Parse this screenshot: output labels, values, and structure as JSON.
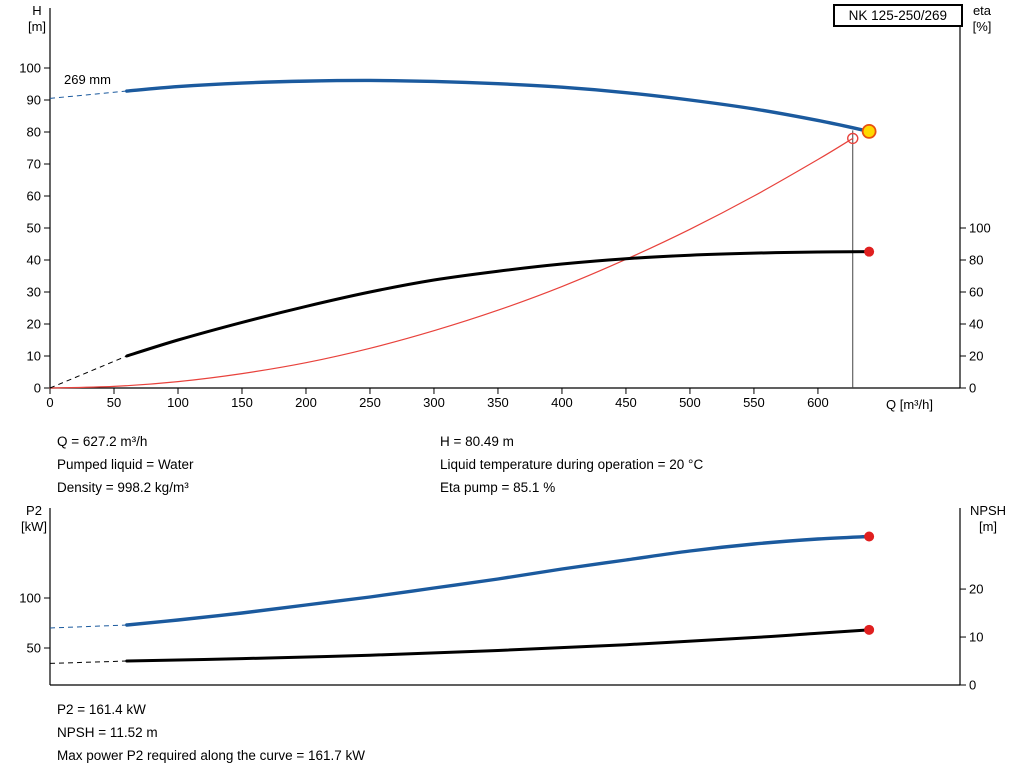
{
  "title_box": "NK 125-250/269",
  "info_top": {
    "left": [
      "Q = 627.2 m³/h",
      "Pumped liquid = Water",
      "Density = 998.2 kg/m³"
    ],
    "right": [
      "H = 80.49 m",
      "Liquid temperature during operation = 20 °C",
      "Eta pump = 85.1 %"
    ]
  },
  "info_bottom": [
    "P2 = 161.4 kW",
    "NPSH = 11.52 m",
    "Max power P2 required along the curve = 161.7 kW"
  ],
  "colors": {
    "curve_blue": "#1b5a9e",
    "curve_black": "#000000",
    "curve_red_thin": "#e8423c",
    "dot_red": "#e01f1f",
    "duty_yellow": "#ffd900",
    "duty_ring": "#e8500f"
  },
  "chart_data": [
    {
      "type": "line",
      "title": "NK 125-250/269",
      "curve_label": "269 mm",
      "x_axis": {
        "label": "Q [m³/h]",
        "min": 0,
        "max": 711,
        "ticks": [
          0,
          50,
          100,
          150,
          200,
          250,
          300,
          350,
          400,
          450,
          500,
          550,
          600
        ]
      },
      "y_left": {
        "label_lines": [
          "H",
          "[m]"
        ],
        "min": 0,
        "max": 118.75,
        "ticks": [
          0,
          10,
          20,
          30,
          40,
          50,
          60,
          70,
          80,
          90,
          100
        ]
      },
      "y_right": {
        "label_lines": [
          "eta",
          "[%]"
        ],
        "min": 0,
        "max": 237.5,
        "ticks": [
          0,
          20,
          40,
          60,
          80,
          100
        ]
      },
      "duty_line": {
        "q": 627.2,
        "v_top": 80.49,
        "axis": "left"
      },
      "series": [
        {
          "name": "system-curve",
          "axis": "left",
          "color": "#e8423c",
          "width": 1.2,
          "points": [
            [
              0,
              0
            ],
            [
              50,
              0.5
            ],
            [
              100,
              2.0
            ],
            [
              150,
              4.5
            ],
            [
              200,
              7.9
            ],
            [
              250,
              12.4
            ],
            [
              300,
              17.9
            ],
            [
              350,
              24.3
            ],
            [
              400,
              31.7
            ],
            [
              450,
              40.2
            ],
            [
              500,
              49.6
            ],
            [
              550,
              60.0
            ],
            [
              600,
              71.4
            ],
            [
              627.2,
              78.0
            ]
          ]
        },
        {
          "name": "eta-curve",
          "axis": "right",
          "color": "#000000",
          "width": 3,
          "dashed_lead": [
            [
              0,
              0
            ],
            [
              60,
              20
            ]
          ],
          "points": [
            [
              60,
              20
            ],
            [
              100,
              30
            ],
            [
              150,
              41
            ],
            [
              200,
              51
            ],
            [
              250,
              60
            ],
            [
              300,
              67.5
            ],
            [
              350,
              73
            ],
            [
              400,
              77.5
            ],
            [
              450,
              80.8
            ],
            [
              500,
              83
            ],
            [
              550,
              84.3
            ],
            [
              600,
              85
            ],
            [
              640,
              85.2
            ]
          ]
        },
        {
          "name": "head-curve",
          "axis": "left",
          "color": "#1b5a9e",
          "width": 3.4,
          "dashed_lead": [
            [
              0,
              90.5
            ],
            [
              60,
              92.8
            ]
          ],
          "points": [
            [
              60,
              92.8
            ],
            [
              100,
              94.2
            ],
            [
              150,
              95.3
            ],
            [
              200,
              95.9
            ],
            [
              250,
              96.1
            ],
            [
              300,
              95.8
            ],
            [
              350,
              95.1
            ],
            [
              400,
              94
            ],
            [
              450,
              92.3
            ],
            [
              500,
              90
            ],
            [
              550,
              87.2
            ],
            [
              600,
              83.6
            ],
            [
              640,
              80.2
            ]
          ]
        }
      ],
      "markers": [
        {
          "name": "eta-end-dot",
          "axis": "right",
          "q": 640,
          "v": 85.2,
          "r": 5,
          "fill": "#e01f1f",
          "stroke": "none",
          "stroke_width": 0
        },
        {
          "name": "duty-spec-open-circle",
          "axis": "left",
          "q": 627.2,
          "v": 78,
          "r": 5,
          "fill": "none",
          "stroke": "#e8423c",
          "stroke_width": 1.4
        },
        {
          "name": "duty-point-marker",
          "axis": "left",
          "q": 640,
          "v": 80.2,
          "r": 6.5,
          "fill": "#ffd900",
          "stroke": "#e8500f",
          "stroke_width": 1.8
        }
      ]
    },
    {
      "type": "line",
      "title": "P2 / NPSH",
      "x_axis": {
        "label": "",
        "min": 0,
        "max": 711,
        "ticks": []
      },
      "y_left": {
        "label_lines": [
          "P2",
          "[kW]"
        ],
        "min": 13,
        "max": 190,
        "ticks": [
          50,
          100
        ]
      },
      "y_right": {
        "label_lines": [
          "NPSH",
          "[m]"
        ],
        "min": 0,
        "max": 36.9,
        "ticks": [
          0,
          10,
          20
        ]
      },
      "series": [
        {
          "name": "npsh-curve",
          "axis": "right",
          "color": "#000000",
          "width": 3,
          "dashed_lead": [
            [
              0,
              4.5
            ],
            [
              60,
              5
            ]
          ],
          "points": [
            [
              60,
              5
            ],
            [
              150,
              5.5
            ],
            [
              250,
              6.2
            ],
            [
              350,
              7.2
            ],
            [
              450,
              8.4
            ],
            [
              550,
              9.9
            ],
            [
              600,
              10.8
            ],
            [
              640,
              11.5
            ]
          ]
        },
        {
          "name": "p2-curve",
          "axis": "left",
          "color": "#1b5a9e",
          "width": 3.4,
          "dashed_lead": [
            [
              0,
              70
            ],
            [
              60,
              73
            ]
          ],
          "points": [
            [
              60,
              73
            ],
            [
              100,
              78
            ],
            [
              150,
              85
            ],
            [
              200,
              93
            ],
            [
              250,
              101
            ],
            [
              300,
              110
            ],
            [
              350,
              119
            ],
            [
              400,
              129
            ],
            [
              450,
              138
            ],
            [
              500,
              147
            ],
            [
              550,
              154
            ],
            [
              600,
              159
            ],
            [
              640,
              161.5
            ]
          ]
        }
      ],
      "markers": [
        {
          "name": "p2-end-dot",
          "axis": "left",
          "q": 640,
          "v": 161.5,
          "r": 5,
          "fill": "#e01f1f",
          "stroke": "none",
          "stroke_width": 0
        },
        {
          "name": "npsh-end-dot",
          "axis": "right",
          "q": 640,
          "v": 11.5,
          "r": 5,
          "fill": "#e01f1f",
          "stroke": "none",
          "stroke_width": 0
        }
      ]
    }
  ]
}
